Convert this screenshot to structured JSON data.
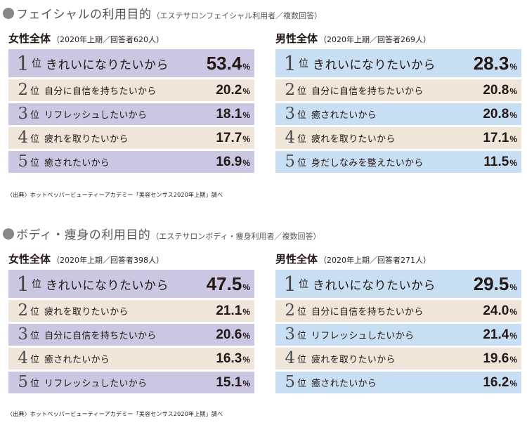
{
  "sections": [
    {
      "title": "フェイシャルの利用目的",
      "note": "（エステサロンフェイシャル利用者／複数回答）",
      "female": {
        "title": "女性全体",
        "note": "（2020年上期／回答者620人）",
        "rows": [
          {
            "rank": "1",
            "suffix": "位",
            "reason": "きれいになりたいから",
            "value": "53.4",
            "unit": "%"
          },
          {
            "rank": "2",
            "suffix": "位",
            "reason": "自分に自信を持ちたいから",
            "value": "20.2",
            "unit": "%"
          },
          {
            "rank": "3",
            "suffix": "位",
            "reason": "リフレッシュしたいから",
            "value": "18.1",
            "unit": "%"
          },
          {
            "rank": "4",
            "suffix": "位",
            "reason": "疲れを取りたいから",
            "value": "17.7",
            "unit": "%"
          },
          {
            "rank": "5",
            "suffix": "位",
            "reason": "癒されたいから",
            "value": "16.9",
            "unit": "%"
          }
        ]
      },
      "male": {
        "title": "男性全体",
        "note": "（2020年上期／回答者269人）",
        "rows": [
          {
            "rank": "1",
            "suffix": "位",
            "reason": "きれいになりたいから",
            "value": "28.3",
            "unit": "%"
          },
          {
            "rank": "2",
            "suffix": "位",
            "reason": "自分に自信を持ちたいから",
            "value": "20.8",
            "unit": "%"
          },
          {
            "rank": "3",
            "suffix": "位",
            "reason": "癒されたいから",
            "value": "20.8",
            "unit": "%"
          },
          {
            "rank": "4",
            "suffix": "位",
            "reason": "疲れを取りたいから",
            "value": "17.1",
            "unit": "%"
          },
          {
            "rank": "5",
            "suffix": "位",
            "reason": "身だしなみを整えたいから",
            "value": "11.5",
            "unit": "%"
          }
        ]
      },
      "source": "〈出典〉ホットペッパービューティーアカデミー「美容センサス2020年上期」調べ"
    },
    {
      "title": "ボディ・痩身の利用目的",
      "note": "（エステサロンボディ・痩身利用者／複数回答）",
      "female": {
        "title": "女性全体",
        "note": "（2020年上期／回答者398人）",
        "rows": [
          {
            "rank": "1",
            "suffix": "位",
            "reason": "きれいになりたいから",
            "value": "47.5",
            "unit": "%"
          },
          {
            "rank": "2",
            "suffix": "位",
            "reason": "疲れを取りたいから",
            "value": "21.1",
            "unit": "%"
          },
          {
            "rank": "3",
            "suffix": "位",
            "reason": "自分に自信を持ちたいから",
            "value": "20.6",
            "unit": "%"
          },
          {
            "rank": "4",
            "suffix": "位",
            "reason": "癒されたいから",
            "value": "16.3",
            "unit": "%"
          },
          {
            "rank": "5",
            "suffix": "位",
            "reason": "リフレッシュしたいから",
            "value": "15.1",
            "unit": "%"
          }
        ]
      },
      "male": {
        "title": "男性全体",
        "note": "（2020年上期／回答者271人）",
        "rows": [
          {
            "rank": "1",
            "suffix": "位",
            "reason": "きれいになりたいから",
            "value": "29.5",
            "unit": "%"
          },
          {
            "rank": "2",
            "suffix": "位",
            "reason": "自分に自信を持ちたいから",
            "value": "24.0",
            "unit": "%"
          },
          {
            "rank": "3",
            "suffix": "位",
            "reason": "リフレッシュしたいから",
            "value": "21.4",
            "unit": "%"
          },
          {
            "rank": "4",
            "suffix": "位",
            "reason": "疲れを取りたいから",
            "value": "19.6",
            "unit": "%"
          },
          {
            "rank": "5",
            "suffix": "位",
            "reason": "癒されたいから",
            "value": "16.2",
            "unit": "%"
          }
        ]
      },
      "source": "〈出典〉ホットペッパービューティーアカデミー「美容センサス2020年上期」調べ"
    }
  ],
  "colors": {
    "female_highlight": "#cbc6e2",
    "male_highlight": "#c8def2",
    "neutral_row": "#efe6d9",
    "bullet": "#888888"
  }
}
